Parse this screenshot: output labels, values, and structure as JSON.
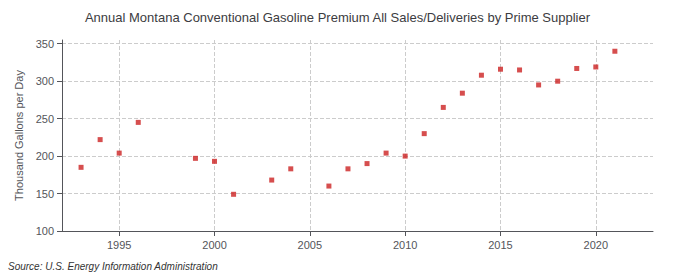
{
  "chart_data": {
    "type": "scatter",
    "title": "Annual Montana Conventional Gasoline Premium All Sales/Deliveries by Prime Supplier",
    "ylabel": "Thousand Gallons per Day",
    "annotation": "Source: U.S. Energy Information Administration",
    "x": [
      1993,
      1994,
      1995,
      1996,
      1999,
      2000,
      2001,
      2003,
      2004,
      2006,
      2007,
      2008,
      2009,
      2010,
      2011,
      2012,
      2013,
      2014,
      2015,
      2016,
      2017,
      2018,
      2019,
      2020,
      2021
    ],
    "values": [
      185,
      222,
      204,
      245,
      197,
      193,
      149,
      168,
      183,
      160,
      183,
      190,
      204,
      200,
      230,
      265,
      284,
      308,
      316,
      315,
      295,
      300,
      317,
      319,
      340
    ],
    "xlim": [
      1992,
      2023
    ],
    "ylim": [
      100,
      355
    ],
    "xticks": [
      1995,
      2000,
      2005,
      2010,
      2015,
      2020
    ],
    "yticks": [
      100,
      150,
      200,
      250,
      300,
      350
    ],
    "color": "#cc2222",
    "marker": "square",
    "grid": true
  }
}
